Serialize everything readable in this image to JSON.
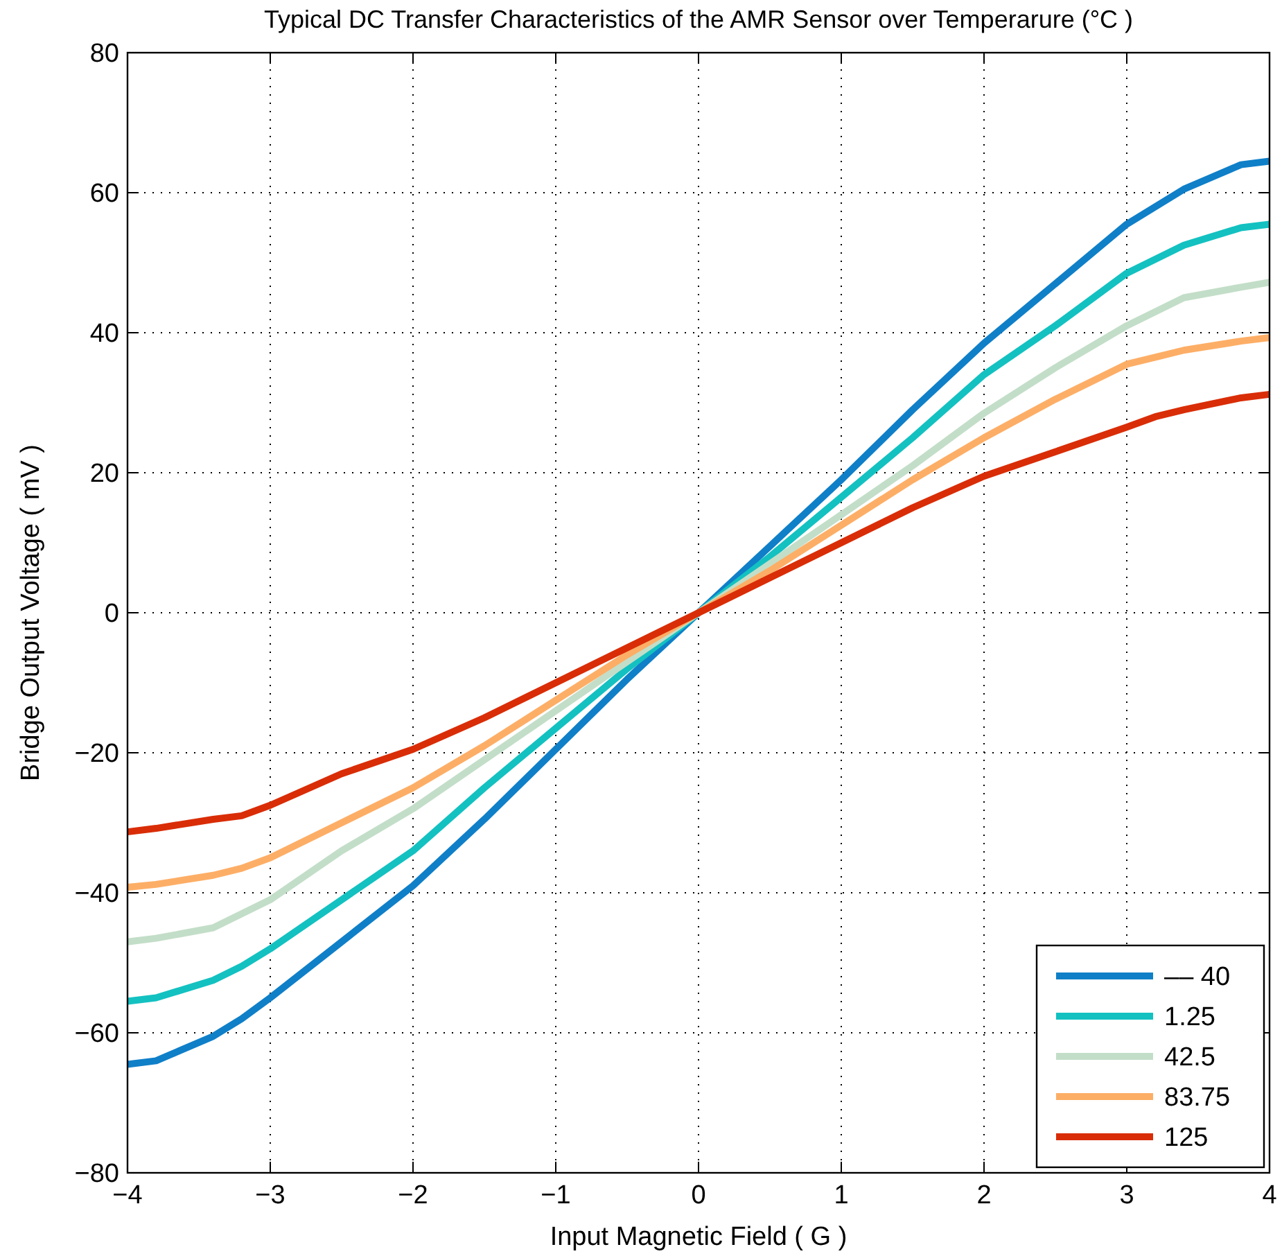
{
  "chart_data": {
    "type": "line",
    "title": "Typical DC Transfer Characteristics of the AMR Sensor over Temperarure (°C )",
    "xlabel": "Input Magnetic Field ( G )",
    "ylabel": "Bridge Output Voltage ( mV )",
    "x": [
      -4,
      -3.8,
      -3.4,
      -3.2,
      -3,
      -2.5,
      -2,
      -1.5,
      -1,
      -0.5,
      0,
      0.5,
      1,
      1.5,
      2,
      2.5,
      3,
      3.2,
      3.4,
      3.8,
      4
    ],
    "series": [
      {
        "name": "–– 40",
        "color": "#0f7fc8",
        "values": [
          -64.5,
          -64,
          -60.5,
          -58,
          -55,
          -47,
          -39,
          -29.5,
          -19.5,
          -9.5,
          0,
          9.5,
          19,
          29,
          38.5,
          47,
          55.5,
          58,
          60.5,
          64,
          64.5
        ]
      },
      {
        "name": "1.25",
        "color": "#13c1c1",
        "values": [
          -55.5,
          -55,
          -52.5,
          -50.5,
          -48,
          -41,
          -34,
          -25,
          -16.5,
          -8,
          0,
          8,
          16.5,
          25,
          34,
          41,
          48.5,
          50.5,
          52.5,
          55,
          55.5
        ]
      },
      {
        "name": "42.5",
        "color": "#c3dec8",
        "values": [
          -47,
          -46.5,
          -45,
          -43,
          -41,
          -34,
          -28,
          -21,
          -14,
          -7,
          0,
          7,
          14,
          21,
          28.5,
          35,
          41,
          43,
          45,
          46.5,
          47.2
        ]
      },
      {
        "name": "83.75",
        "color": "#fdae66",
        "values": [
          -39.2,
          -38.8,
          -37.5,
          -36.5,
          -35,
          -30,
          -25,
          -19,
          -12.5,
          -6,
          0,
          6,
          12.5,
          19,
          25,
          30.5,
          35.5,
          36.5,
          37.5,
          38.8,
          39.3
        ]
      },
      {
        "name": "125",
        "color": "#d92d07",
        "values": [
          -31.3,
          -30.8,
          -29.5,
          -29,
          -27.5,
          -23,
          -19.5,
          -15,
          -10,
          -5,
          0,
          5,
          10,
          15,
          19.5,
          23,
          26.5,
          28,
          29,
          30.7,
          31.2
        ]
      }
    ],
    "xlim": [
      -4,
      4
    ],
    "xticks": [
      {
        "value": -4,
        "label": "−4"
      },
      {
        "value": -3,
        "label": "−3"
      },
      {
        "value": -2,
        "label": "−2"
      },
      {
        "value": -1,
        "label": "−1"
      },
      0,
      1,
      2,
      3,
      4
    ],
    "ylim": [
      -80,
      80
    ],
    "yticks": [
      {
        "value": -80,
        "label": "−80"
      },
      {
        "value": -60,
        "label": "−60"
      },
      {
        "value": -40,
        "label": "−40"
      },
      {
        "value": -20,
        "label": "−20"
      },
      0,
      20,
      40,
      60,
      80
    ],
    "grid": true,
    "legend": "bottom right",
    "line_style": "solid",
    "marker": "none"
  }
}
